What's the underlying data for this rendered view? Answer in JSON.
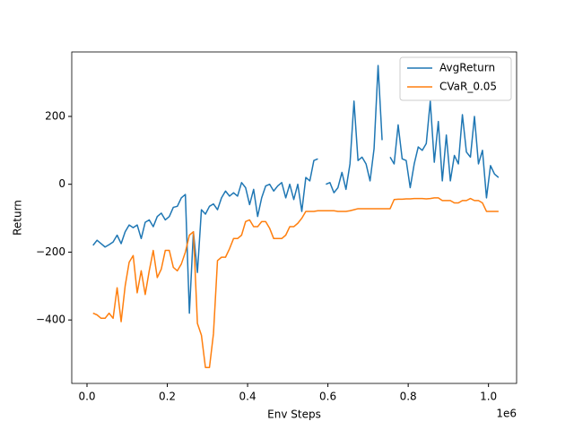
{
  "chart_data": {
    "type": "line",
    "xlabel": "Env Steps",
    "ylabel": "Return",
    "x_offset_label": "1e6",
    "x": [
      0.015,
      0.025,
      0.035,
      0.045,
      0.055,
      0.065,
      0.075,
      0.085,
      0.095,
      0.105,
      0.115,
      0.125,
      0.135,
      0.145,
      0.155,
      0.165,
      0.175,
      0.185,
      0.195,
      0.205,
      0.215,
      0.225,
      0.235,
      0.245,
      0.255,
      0.265,
      0.275,
      0.285,
      0.295,
      0.305,
      0.315,
      0.325,
      0.335,
      0.345,
      0.355,
      0.365,
      0.375,
      0.385,
      0.395,
      0.405,
      0.415,
      0.425,
      0.435,
      0.445,
      0.455,
      0.465,
      0.475,
      0.485,
      0.495,
      0.505,
      0.515,
      0.525,
      0.535,
      0.545,
      0.555,
      0.565,
      0.575,
      0.585,
      0.595,
      0.605,
      0.615,
      0.625,
      0.635,
      0.645,
      0.655,
      0.665,
      0.675,
      0.685,
      0.695,
      0.705,
      0.715,
      0.725,
      0.735,
      0.745,
      0.755,
      0.765,
      0.775,
      0.785,
      0.795,
      0.805,
      0.815,
      0.825,
      0.835,
      0.845,
      0.855,
      0.865,
      0.875,
      0.885,
      0.895,
      0.905,
      0.915,
      0.925,
      0.935,
      0.945,
      0.955,
      0.965,
      0.975,
      0.985,
      0.995,
      1.005,
      1.015,
      1.025
    ],
    "series": [
      {
        "name": "AvgReturn",
        "color": "#1f77b4",
        "values": [
          -180,
          -165,
          -175,
          -185,
          -178,
          -170,
          -150,
          -175,
          -140,
          -120,
          -128,
          -120,
          -160,
          -112,
          -105,
          -125,
          -95,
          -85,
          -105,
          -95,
          -68,
          -65,
          -40,
          -30,
          -380,
          -140,
          -260,
          -75,
          -88,
          -65,
          -58,
          -75,
          -40,
          -20,
          -35,
          -25,
          -35,
          5,
          -10,
          -60,
          -15,
          -95,
          -40,
          -5,
          0,
          -20,
          -5,
          5,
          -40,
          0,
          -45,
          0,
          -80,
          20,
          10,
          70,
          75,
          null,
          0,
          5,
          -25,
          -10,
          35,
          -15,
          60,
          245,
          70,
          80,
          60,
          10,
          105,
          350,
          130,
          null,
          80,
          60,
          175,
          75,
          70,
          -10,
          60,
          110,
          100,
          120,
          245,
          65,
          185,
          10,
          145,
          10,
          85,
          60,
          205,
          95,
          80,
          200,
          60,
          100,
          -40,
          55,
          30,
          20
        ]
      },
      {
        "name": "CVaR_0.05",
        "color": "#ff7f0e",
        "values": [
          -380,
          -385,
          -395,
          -395,
          -380,
          -395,
          -305,
          -405,
          -300,
          -230,
          -210,
          -320,
          -255,
          -325,
          -255,
          -195,
          -275,
          -250,
          -195,
          -195,
          -245,
          -255,
          -235,
          -200,
          -150,
          -140,
          -410,
          -445,
          -540,
          -540,
          -440,
          -225,
          -215,
          -215,
          -190,
          -160,
          -160,
          -150,
          -110,
          -105,
          -125,
          -125,
          -110,
          -110,
          -130,
          -160,
          -160,
          -160,
          -150,
          -125,
          -125,
          -115,
          -100,
          -80,
          -80,
          -80,
          -78,
          -78,
          -78,
          -78,
          -78,
          -80,
          -80,
          -80,
          -78,
          -75,
          -72,
          -72,
          -72,
          -72,
          -72,
          -72,
          -72,
          -72,
          -72,
          -45,
          -44,
          -44,
          -43,
          -43,
          -42,
          -42,
          -42,
          -43,
          -42,
          -40,
          -40,
          -48,
          -48,
          -48,
          -55,
          -55,
          -48,
          -48,
          -42,
          -48,
          -48,
          -55,
          -80,
          -80,
          -80,
          -80
        ]
      }
    ],
    "xlim": [
      -0.038,
      1.07
    ],
    "ylim": [
      -587,
      390
    ],
    "xticks": [
      {
        "value": 0,
        "label": "0.0"
      },
      0.2,
      0.4,
      0.6,
      0.8,
      {
        "value": 1,
        "label": "1.0"
      }
    ],
    "yticks": [
      {
        "value": -400,
        "label": "−400"
      },
      {
        "value": -200,
        "label": "−200"
      },
      0,
      200
    ],
    "grid": false,
    "legend": "upper right"
  }
}
